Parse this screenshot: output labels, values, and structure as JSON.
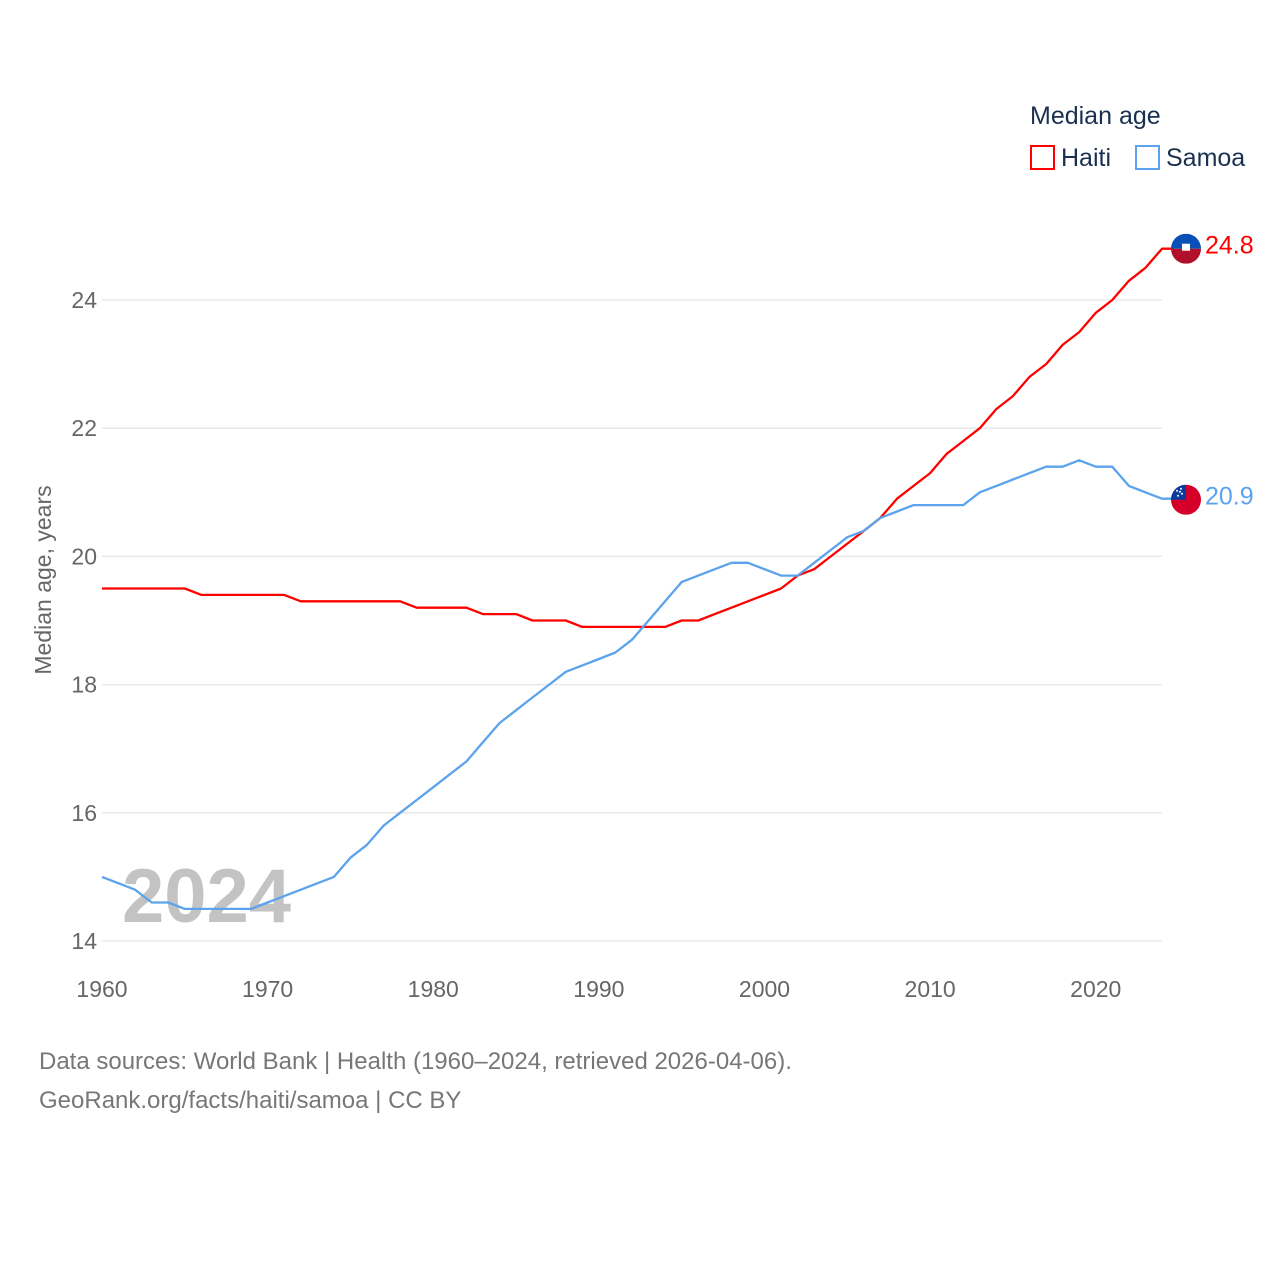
{
  "chart_data": {
    "type": "line",
    "title": "",
    "xlabel": "",
    "ylabel": "Median age, years",
    "xlim": [
      1960,
      2024
    ],
    "ylim": [
      14,
      24.8
    ],
    "grid": true,
    "legend_placement": "top-right",
    "legend_title": "Median age",
    "year_watermark": "2024",
    "x_ticks": [
      1960,
      1970,
      1980,
      1990,
      2000,
      2010,
      2020
    ],
    "y_ticks": [
      14,
      16,
      18,
      20,
      22,
      24
    ],
    "x_start": 1960,
    "series": [
      {
        "name": "Haiti",
        "color": "#ff0000",
        "end_label": "24.8",
        "values": [
          19.5,
          19.5,
          19.5,
          19.5,
          19.5,
          19.5,
          19.4,
          19.4,
          19.4,
          19.4,
          19.4,
          19.4,
          19.3,
          19.3,
          19.3,
          19.3,
          19.3,
          19.3,
          19.3,
          19.2,
          19.2,
          19.2,
          19.2,
          19.1,
          19.1,
          19.1,
          19.0,
          19.0,
          19.0,
          18.9,
          18.9,
          18.9,
          18.9,
          18.9,
          18.9,
          19.0,
          19.0,
          19.1,
          19.2,
          19.3,
          19.4,
          19.5,
          19.7,
          19.8,
          20.0,
          20.2,
          20.4,
          20.6,
          20.9,
          21.1,
          21.3,
          21.6,
          21.8,
          22.0,
          22.3,
          22.5,
          22.8,
          23.0,
          23.3,
          23.5,
          23.8,
          24.0,
          24.3,
          24.5,
          24.8
        ]
      },
      {
        "name": "Samoa",
        "color": "#5ba3ec",
        "end_label": "20.9",
        "values": [
          15.0,
          14.9,
          14.8,
          14.6,
          14.6,
          14.5,
          14.5,
          14.5,
          14.5,
          14.5,
          14.6,
          14.7,
          14.8,
          14.9,
          15.0,
          15.3,
          15.5,
          15.8,
          16.0,
          16.2,
          16.4,
          16.6,
          16.8,
          17.1,
          17.4,
          17.6,
          17.8,
          18.0,
          18.2,
          18.3,
          18.4,
          18.5,
          18.7,
          19.0,
          19.3,
          19.6,
          19.7,
          19.8,
          19.9,
          19.9,
          19.8,
          19.7,
          19.7,
          19.9,
          20.1,
          20.3,
          20.4,
          20.6,
          20.7,
          20.8,
          20.8,
          20.8,
          20.8,
          21.0,
          21.1,
          21.2,
          21.3,
          21.4,
          21.4,
          21.5,
          21.4,
          21.4,
          21.1,
          21.0,
          20.9
        ]
      }
    ]
  },
  "footer": {
    "line1": "Data sources: World Bank | Health (1960–2024, retrieved 2026-04-06).",
    "line2": "GeoRank.org/facts/haiti/samoa | CC BY"
  }
}
